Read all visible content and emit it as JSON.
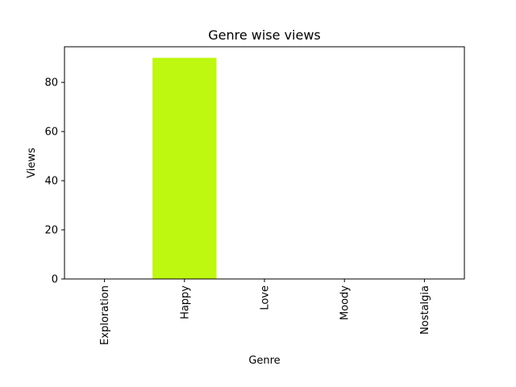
{
  "chart_data": {
    "type": "bar",
    "title": "Genre wise views",
    "xlabel": "Genre",
    "ylabel": "Views",
    "categories": [
      "Exploration",
      "Happy",
      "Love",
      "Moody",
      "Nostalgia"
    ],
    "values": [
      0,
      90,
      0,
      0,
      0
    ],
    "ylim": [
      0,
      94.5
    ],
    "yticks": [
      0,
      20,
      40,
      60,
      80
    ],
    "bar_color": "#bef70f",
    "grid": false,
    "legend": "none"
  }
}
